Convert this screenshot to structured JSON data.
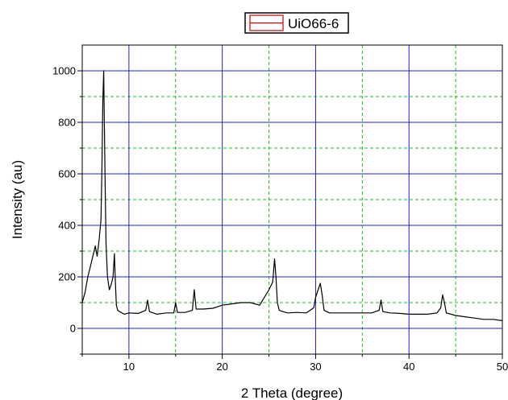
{
  "chart_data": {
    "type": "line",
    "title": "",
    "xlabel": "2 Theta (degree)",
    "ylabel": "Intensity (au)",
    "xlim": [
      5,
      50
    ],
    "ylim": [
      -100,
      1100
    ],
    "xticks": [
      10,
      20,
      30,
      40,
      50
    ],
    "yticks": [
      0,
      200,
      400,
      600,
      800,
      1000
    ],
    "grid": {
      "major": "solid blue",
      "minor": "dashed green"
    },
    "legend_position": "top-center",
    "series": [
      {
        "name": "UiO66-6",
        "color": "#000000",
        "legend_swatch_color": "#cc0000",
        "x": [
          5.0,
          5.3,
          5.6,
          5.8,
          6.0,
          6.2,
          6.4,
          6.6,
          6.8,
          7.0,
          7.1,
          7.2,
          7.3,
          7.35,
          7.45,
          7.55,
          7.7,
          7.9,
          8.1,
          8.3,
          8.45,
          8.55,
          8.65,
          8.8,
          9.0,
          9.5,
          10.0,
          11.0,
          11.8,
          12.0,
          12.2,
          13.0,
          14.0,
          14.8,
          15.0,
          15.2,
          16.0,
          16.8,
          17.0,
          17.2,
          18.0,
          19.0,
          20.0,
          21.0,
          22.0,
          23.0,
          24.0,
          24.5,
          25.0,
          25.4,
          25.6,
          25.75,
          25.9,
          26.1,
          26.5,
          27.0,
          28.0,
          29.0,
          29.8,
          30.0,
          30.5,
          30.7,
          30.9,
          31.5,
          32.0,
          33.0,
          34.0,
          35.0,
          36.0,
          36.8,
          37.0,
          37.2,
          38.0,
          39.0,
          40.0,
          41.0,
          42.0,
          43.0,
          43.4,
          43.6,
          43.8,
          44.0,
          45.0,
          46.0,
          47.0,
          48.0,
          49.0,
          50.0
        ],
        "y": [
          100,
          140,
          200,
          230,
          260,
          290,
          320,
          280,
          340,
          420,
          600,
          880,
          1000,
          850,
          560,
          330,
          200,
          150,
          170,
          200,
          290,
          180,
          90,
          70,
          65,
          55,
          60,
          58,
          70,
          110,
          65,
          55,
          60,
          60,
          100,
          62,
          62,
          70,
          150,
          75,
          75,
          78,
          90,
          95,
          100,
          100,
          90,
          120,
          150,
          180,
          270,
          200,
          100,
          70,
          65,
          60,
          62,
          60,
          80,
          120,
          175,
          130,
          70,
          60,
          60,
          60,
          60,
          60,
          60,
          70,
          110,
          65,
          60,
          58,
          55,
          55,
          55,
          60,
          80,
          130,
          100,
          60,
          50,
          45,
          40,
          35,
          35,
          30
        ]
      }
    ]
  }
}
